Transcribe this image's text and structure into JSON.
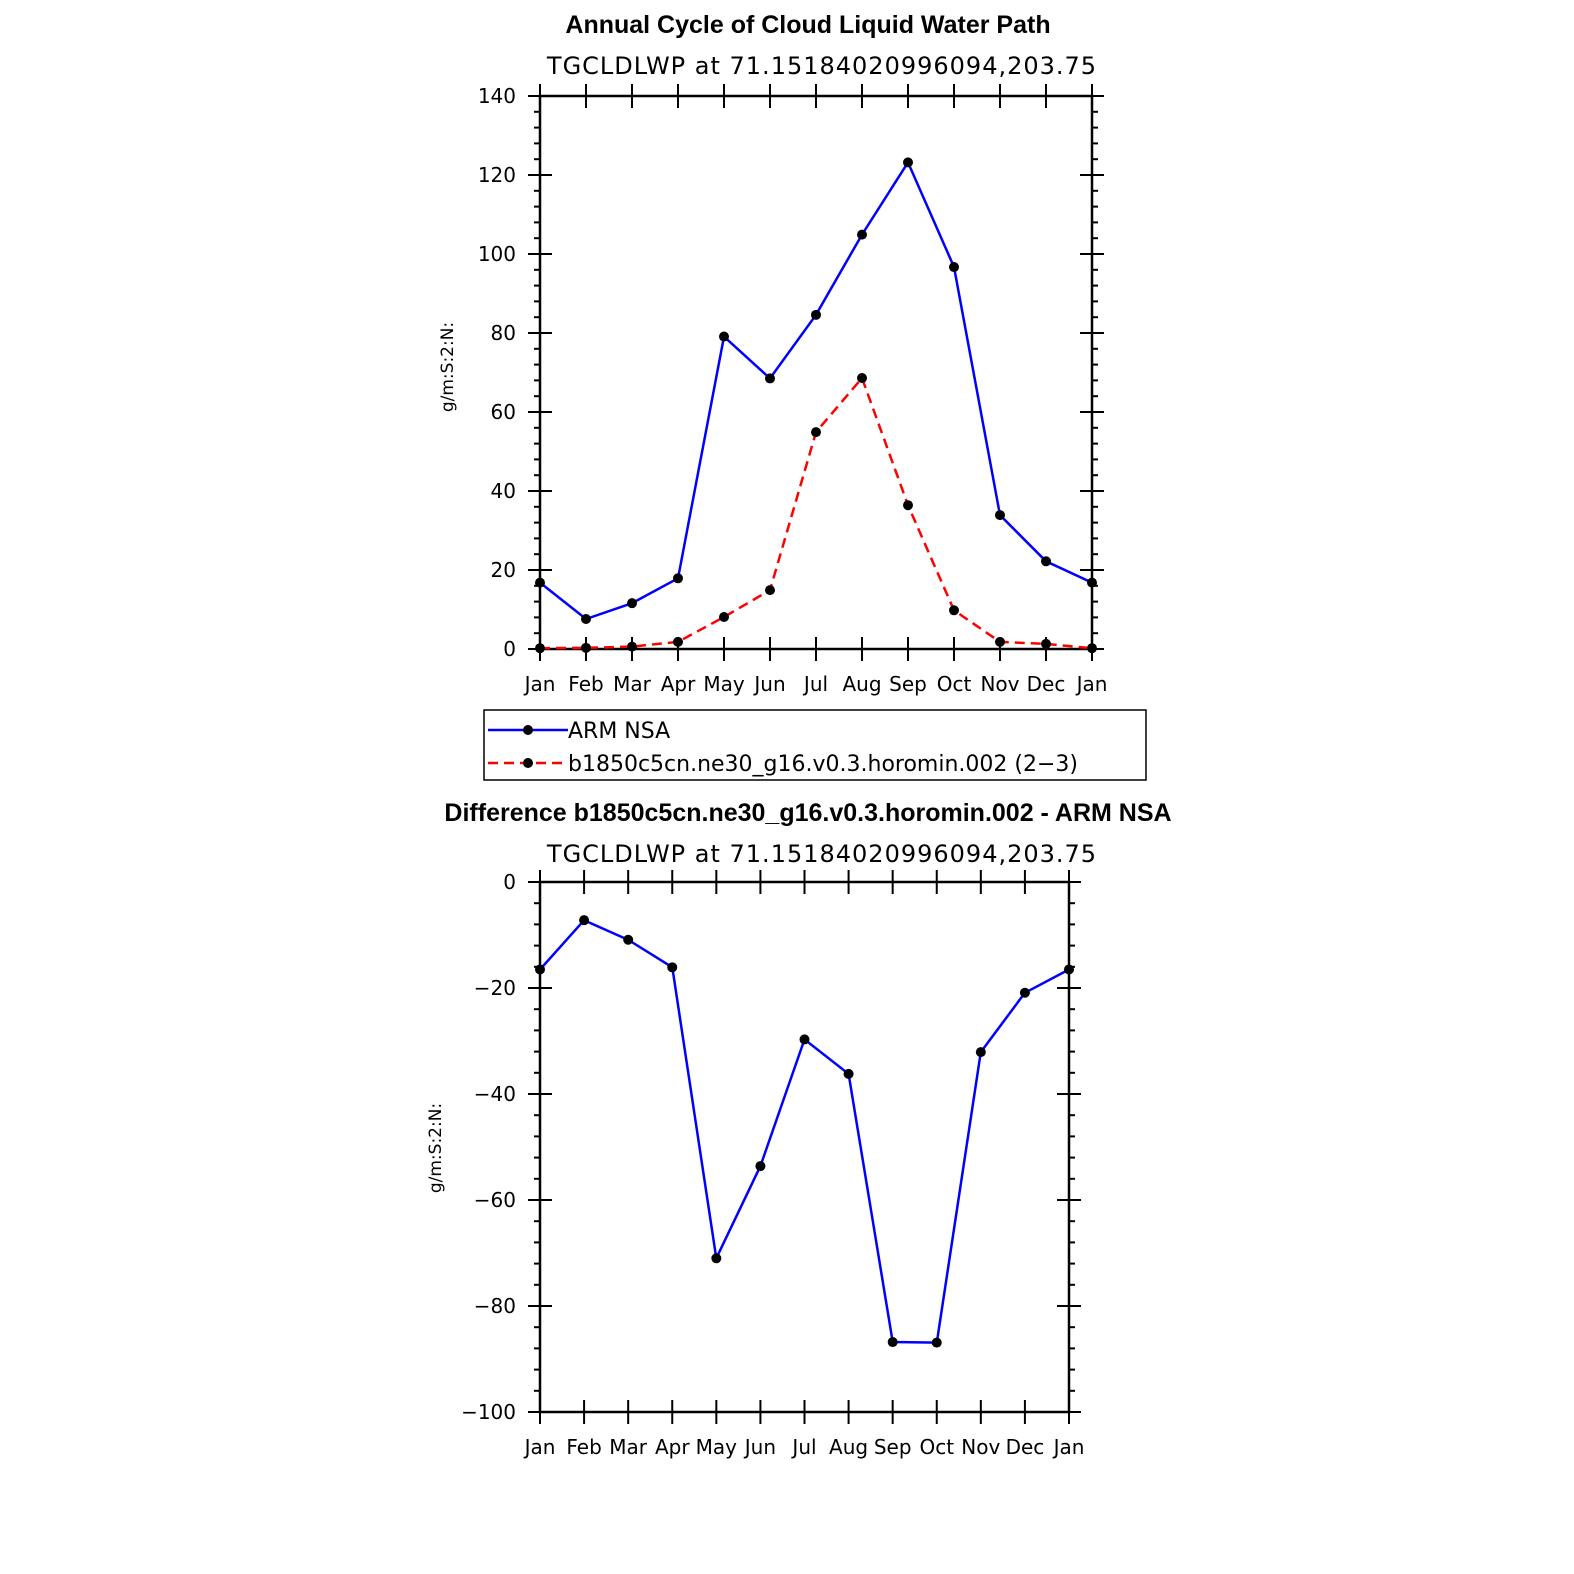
{
  "chart_data": [
    {
      "type": "line",
      "title": "Annual Cycle of Cloud Liquid Water Path",
      "subtitle": "TGCLDLWP at 71.1518402099609​4,203.75",
      "ylabel": "g/m:S:2:N:",
      "ylim": [
        0,
        140
      ],
      "yticks": [
        "0",
        "20",
        "40",
        "60",
        "80",
        "100",
        "120",
        "140"
      ],
      "categories": [
        "Jan",
        "Feb",
        "Mar",
        "Apr",
        "May",
        "Jun",
        "Jul",
        "Aug",
        "Sep",
        "Oct",
        "Nov",
        "Dec",
        "Jan"
      ],
      "series": [
        {
          "name": "ARM NSA",
          "color": "#0000ff",
          "dashed": false,
          "values": [
            16.8,
            7.6,
            11.6,
            17.9,
            79.1,
            68.5,
            84.6,
            104.9,
            123.2,
            96.7,
            33.9,
            22.2,
            16.8
          ]
        },
        {
          "name": "b1850c5cn.ne30_g16.v0.3.horomin.002 (2−3)",
          "color": "#ff0000",
          "dashed": true,
          "values": [
            0.2,
            0.3,
            0.6,
            1.8,
            8.1,
            14.9,
            54.9,
            68.6,
            36.4,
            9.8,
            1.8,
            1.3,
            0.2
          ]
        }
      ]
    },
    {
      "type": "line",
      "title": "Difference b1850c5cn.ne30_g16.v0.3.horomin.002 - ARM NSA",
      "subtitle": "TGCLDLWP at 71.1518402099609​4,203.75",
      "ylabel": "g/m:S:2:N:",
      "ylim": [
        -100,
        0
      ],
      "yticks": [
        "−100",
        "−80",
        "−60",
        "−40",
        "−20",
        "0"
      ],
      "categories": [
        "Jan",
        "Feb",
        "Mar",
        "Apr",
        "May",
        "Jun",
        "Jul",
        "Aug",
        "Sep",
        "Oct",
        "Nov",
        "Dec",
        "Jan"
      ],
      "series": [
        {
          "name": "Difference",
          "color": "#0000ff",
          "dashed": false,
          "values": [
            -16.5,
            -7.2,
            -10.9,
            -16.1,
            -71.0,
            -53.6,
            -29.7,
            -36.2,
            -86.8,
            -86.9,
            -32.1,
            -20.9,
            -16.5
          ]
        }
      ]
    }
  ]
}
